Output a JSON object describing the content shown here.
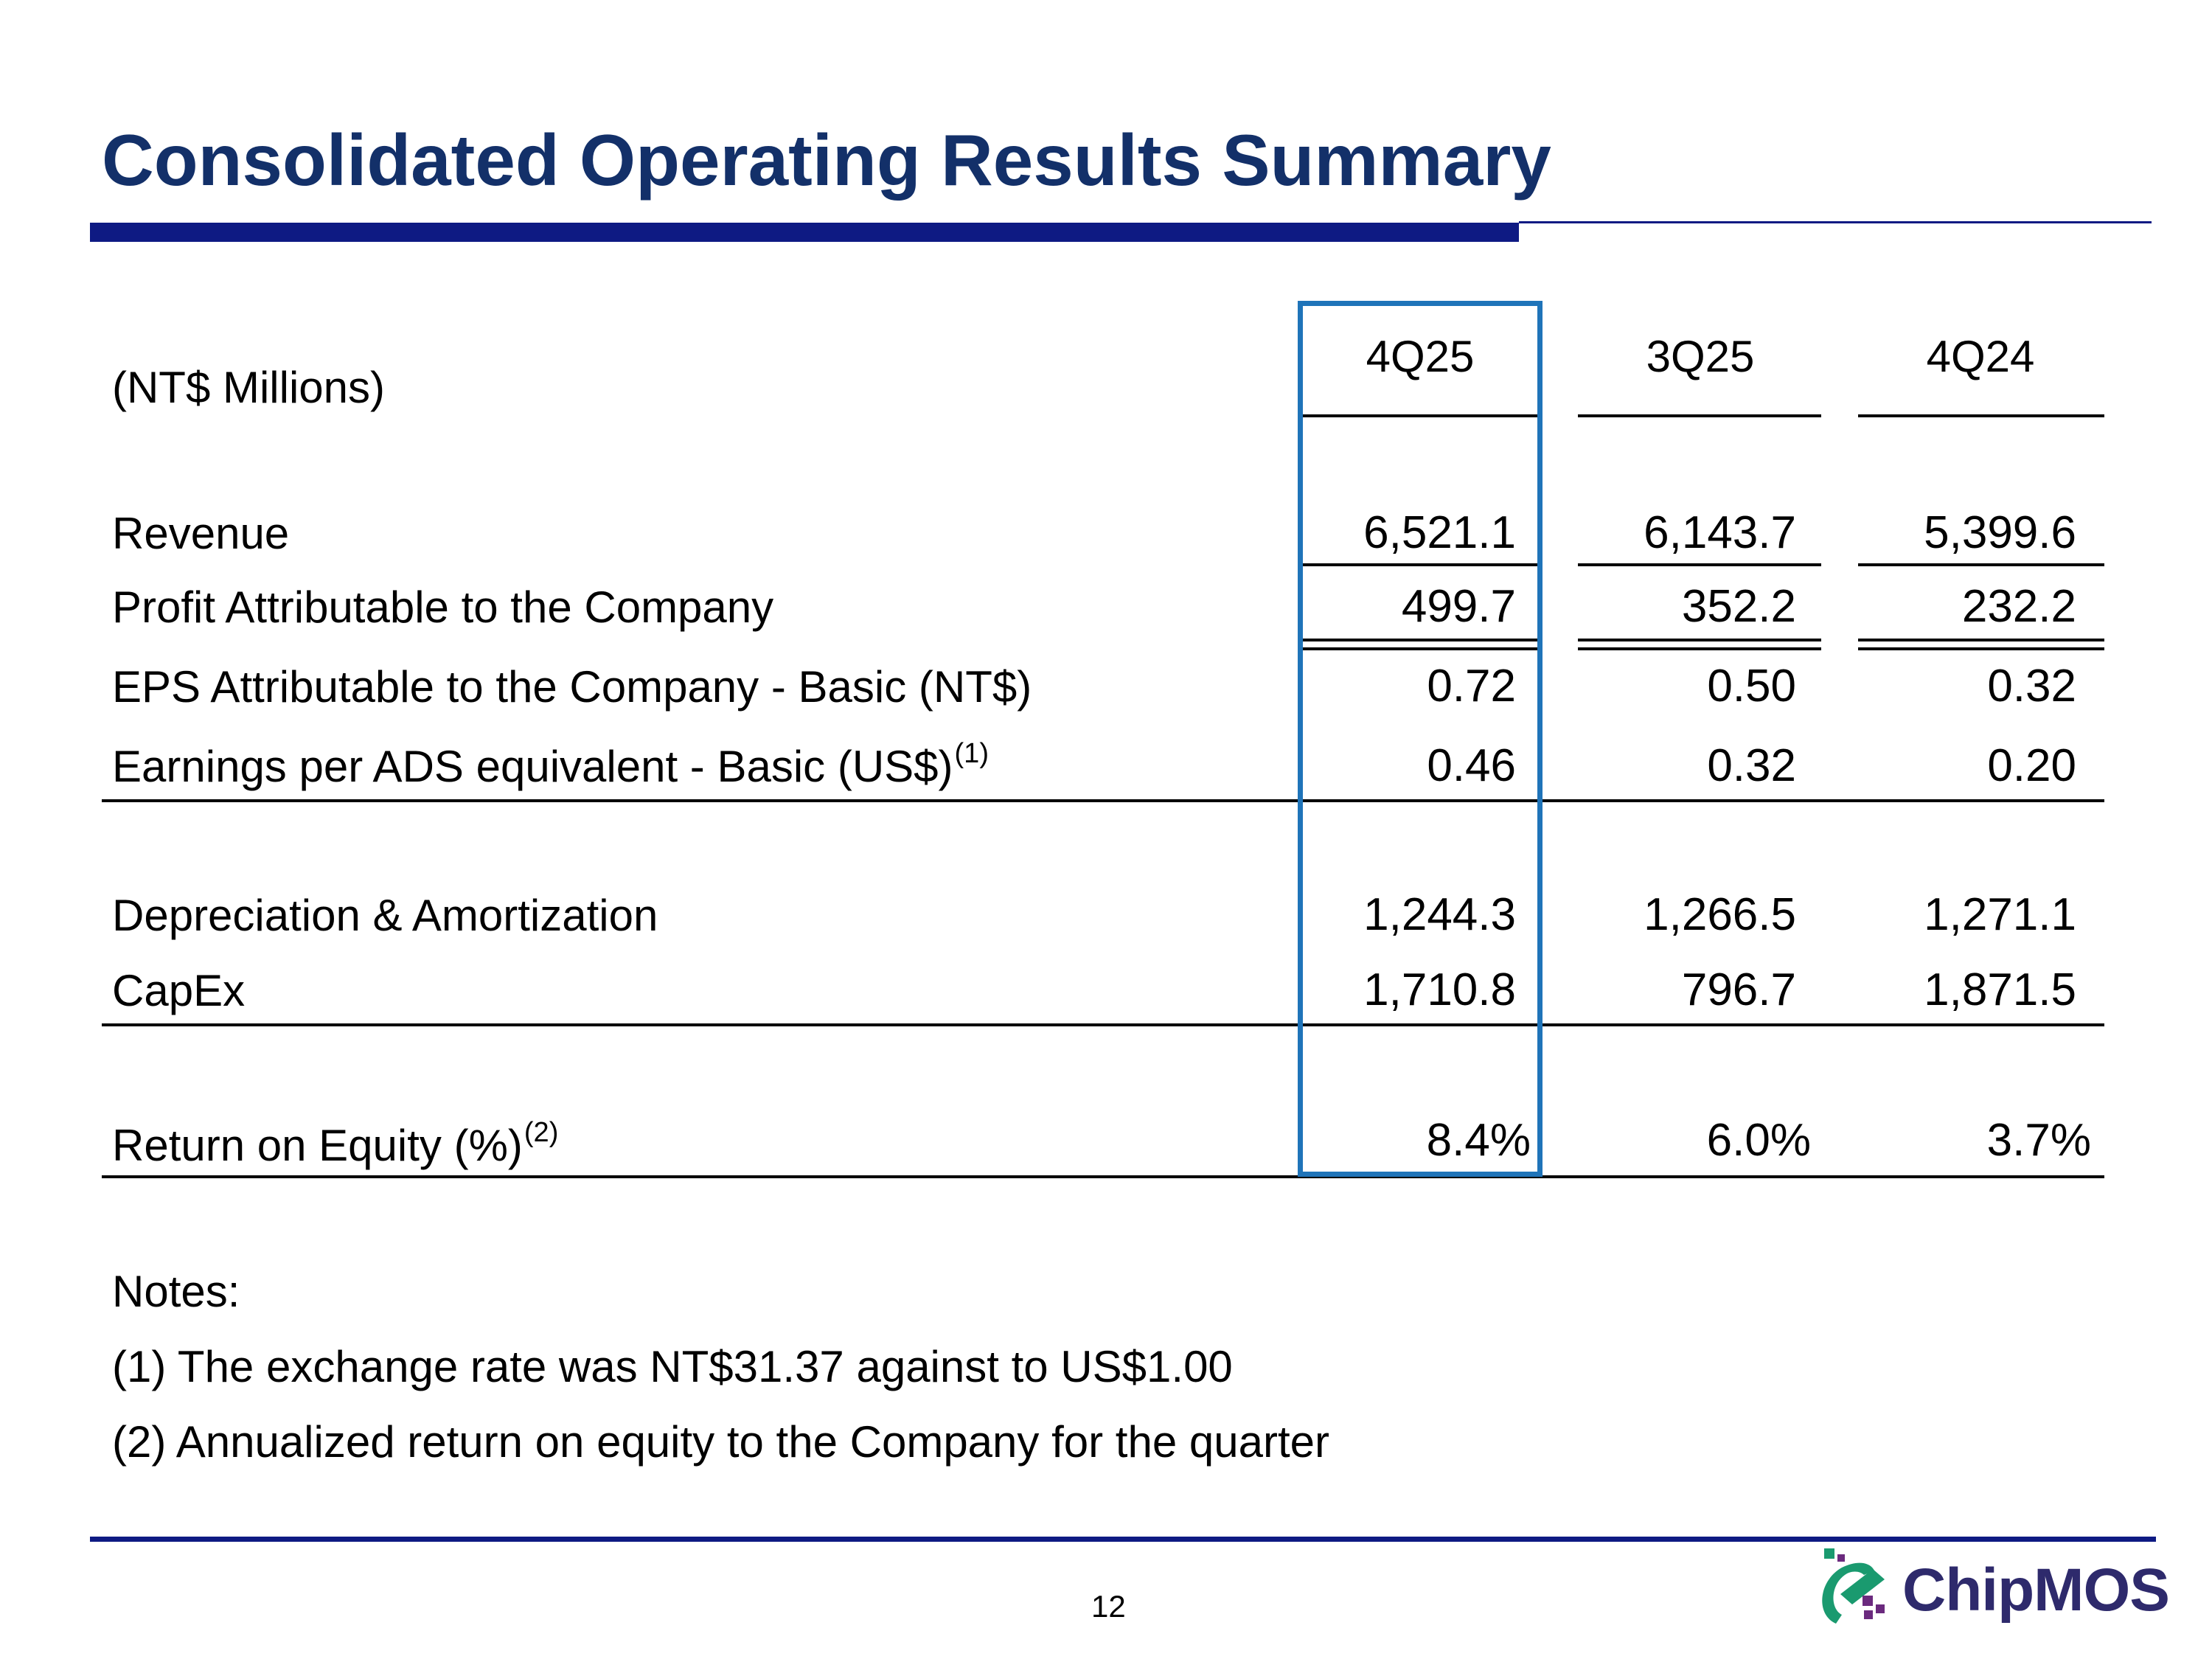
{
  "slide": {
    "title": "Consolidated Operating Results Summary",
    "unit_label": "(NT$ Millions)",
    "columns": [
      "4Q25",
      "3Q25",
      "4Q24"
    ],
    "rows": [
      {
        "label": "Revenue",
        "values": [
          "6,521.1",
          "6,143.7",
          "5,399.6"
        ],
        "sup": ""
      },
      {
        "label": "Profit Attributable to the Company",
        "values": [
          "499.7",
          "352.2",
          "232.2"
        ],
        "sup": ""
      },
      {
        "label": "EPS Attributable to the Company - Basic (NT$)",
        "values": [
          "0.72",
          "0.50",
          "0.32"
        ],
        "sup": ""
      },
      {
        "label": "Earnings per ADS equivalent - Basic (US$)",
        "values": [
          "0.46",
          "0.32",
          "0.20"
        ],
        "sup": "(1)"
      },
      {
        "label": "Depreciation & Amortization",
        "values": [
          "1,244.3",
          "1,266.5",
          "1,271.1"
        ],
        "sup": ""
      },
      {
        "label": "CapEx",
        "values": [
          "1,710.8",
          "796.7",
          "1,871.5"
        ],
        "sup": ""
      },
      {
        "label": "Return on Equity (%)",
        "values": [
          "8.4%",
          "6.0%",
          "3.7%"
        ],
        "sup": "(2)"
      }
    ],
    "notes": {
      "heading": "Notes:",
      "items": [
        "(1) The exchange rate was NT$31.37 against to US$1.00",
        "(2) Annualized return on equity to the Company for the quarter"
      ]
    },
    "page_number": "12",
    "logo_text": "ChipMOS",
    "colors": {
      "title": "#133069",
      "rule": "#0e1a83",
      "highlight": "#1f74b9",
      "logo_green": "#1a9a6f",
      "logo_purple": "#6b2a7e"
    }
  }
}
